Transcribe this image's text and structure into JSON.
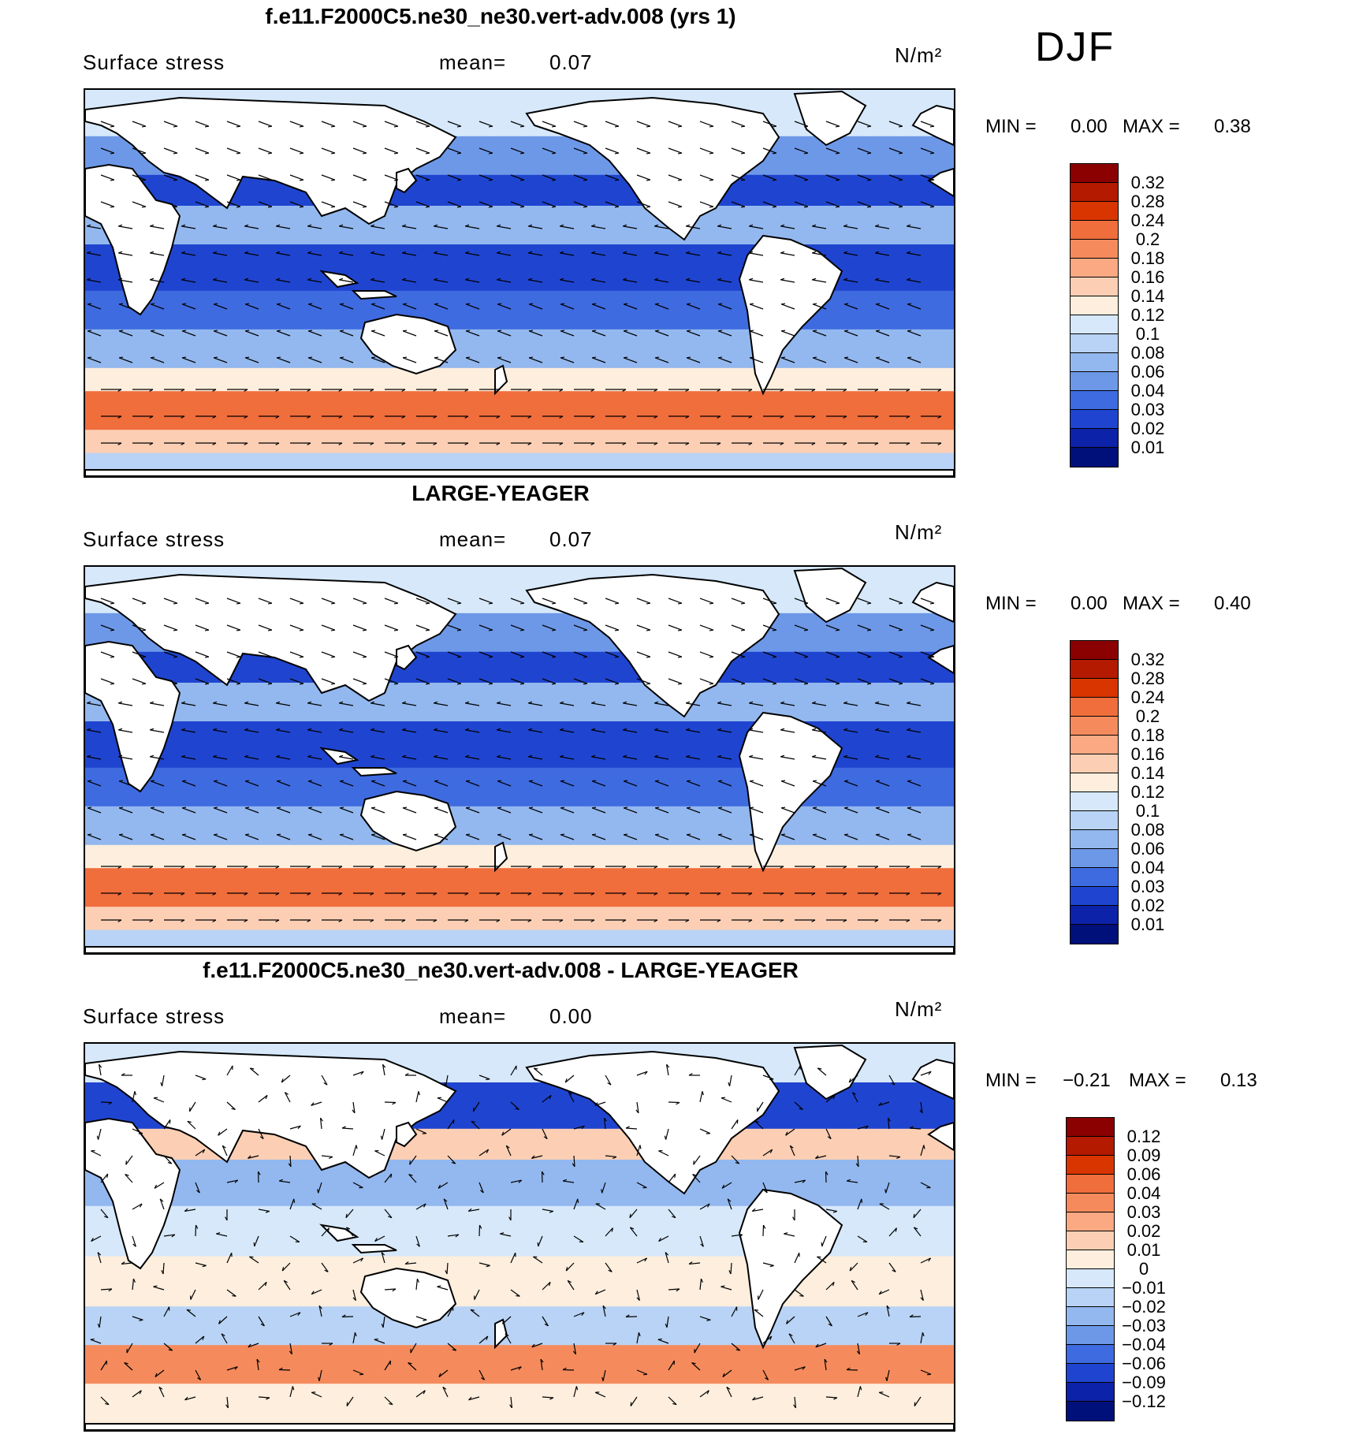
{
  "season": "DJF",
  "units_label": "N/m²",
  "variable_label": "Surface stress",
  "mean_label": "mean=",
  "min_label": "MIN =",
  "max_label": "MAX =",
  "panels": [
    {
      "title": "f.e11.F2000C5.ne30_ne30.vert-adv.008 (yrs 1)",
      "mean": "0.07",
      "min": "0.00",
      "max": "0.38",
      "levels": [
        "0.32",
        "0.28",
        "0.24",
        "0.2",
        "0.18",
        "0.16",
        "0.14",
        "0.12",
        "0.1",
        "0.08",
        "0.06",
        "0.04",
        "0.03",
        "0.02",
        "0.01"
      ],
      "colors": [
        "#8b0000",
        "#b31a00",
        "#d93500",
        "#f06d3c",
        "#f58b5c",
        "#faa983",
        "#fccfb4",
        "#fdeedd",
        "#d6e8fa",
        "#b8d3f5",
        "#93b8ef",
        "#6d98e8",
        "#3f6be0",
        "#1f45d0",
        "#0c22a8",
        "#00107a"
      ]
    },
    {
      "title": "LARGE-YEAGER",
      "mean": "0.07",
      "min": "0.00",
      "max": "0.40",
      "levels": [
        "0.32",
        "0.28",
        "0.24",
        "0.2",
        "0.18",
        "0.16",
        "0.14",
        "0.12",
        "0.1",
        "0.08",
        "0.06",
        "0.04",
        "0.03",
        "0.02",
        "0.01"
      ],
      "colors": [
        "#8b0000",
        "#b31a00",
        "#d93500",
        "#f06d3c",
        "#f58b5c",
        "#faa983",
        "#fccfb4",
        "#fdeedd",
        "#d6e8fa",
        "#b8d3f5",
        "#93b8ef",
        "#6d98e8",
        "#3f6be0",
        "#1f45d0",
        "#0c22a8",
        "#00107a"
      ]
    },
    {
      "title": "f.e11.F2000C5.ne30_ne30.vert-adv.008 - LARGE-YEAGER",
      "mean": "0.00",
      "min": "−0.21",
      "max": "0.13",
      "levels": [
        "0.12",
        "0.09",
        "0.06",
        "0.04",
        "0.03",
        "0.02",
        "0.01",
        "0",
        "−0.01",
        "−0.02",
        "−0.03",
        "−0.04",
        "−0.06",
        "−0.09",
        "−0.12"
      ],
      "colors": [
        "#8b0000",
        "#b31a00",
        "#d93500",
        "#f06d3c",
        "#f58b5c",
        "#faa983",
        "#fccfb4",
        "#fdeedd",
        "#d6e8fa",
        "#b8d3f5",
        "#93b8ef",
        "#6d98e8",
        "#3f6be0",
        "#1f45d0",
        "#0c22a8",
        "#00107a"
      ]
    }
  ]
}
